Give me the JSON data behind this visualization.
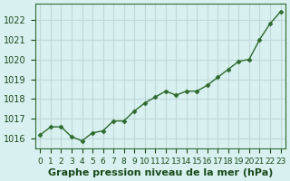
{
  "x": [
    0,
    1,
    2,
    3,
    4,
    5,
    6,
    7,
    8,
    9,
    10,
    11,
    12,
    13,
    14,
    15,
    16,
    17,
    18,
    19,
    20,
    21,
    22,
    23
  ],
  "y": [
    1016.2,
    1016.6,
    1016.6,
    1016.1,
    1015.9,
    1016.3,
    1016.4,
    1016.9,
    1016.9,
    1017.4,
    1017.8,
    1018.1,
    1018.4,
    1018.2,
    1018.4,
    1018.4,
    1018.7,
    1019.1,
    1019.5,
    1019.9,
    1020.0,
    1021.0,
    1021.8,
    1022.4
  ],
  "line_color": "#2d6a2d",
  "marker_color": "#2d6a2d",
  "bg_color": "#d8f0f0",
  "grid_color": "#c0d8d8",
  "ylabel_ticks": [
    1016,
    1017,
    1018,
    1019,
    1020,
    1021,
    1022
  ],
  "xlabel_label": "Graphe pression niveau de la mer (hPa)",
  "xlim": [
    -0.5,
    23.5
  ],
  "ylim": [
    1015.5,
    1022.8
  ],
  "tick_fontsize": 7,
  "label_fontsize": 8,
  "label_color": "#1a4a1a"
}
